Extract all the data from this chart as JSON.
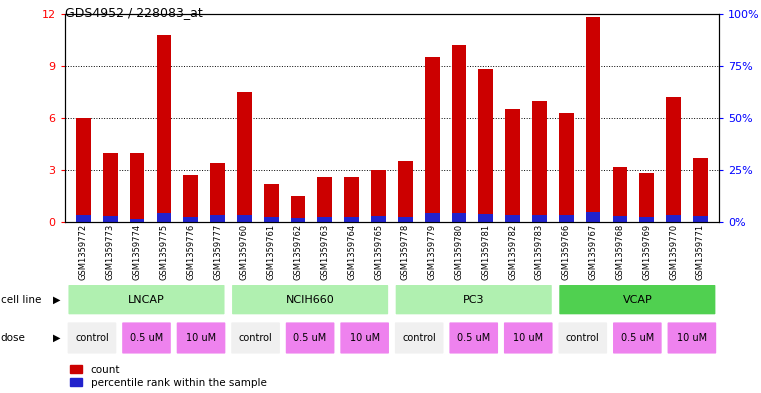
{
  "title": "GDS4952 / 228083_at",
  "samples": [
    "GSM1359772",
    "GSM1359773",
    "GSM1359774",
    "GSM1359775",
    "GSM1359776",
    "GSM1359777",
    "GSM1359760",
    "GSM1359761",
    "GSM1359762",
    "GSM1359763",
    "GSM1359764",
    "GSM1359765",
    "GSM1359778",
    "GSM1359779",
    "GSM1359780",
    "GSM1359781",
    "GSM1359782",
    "GSM1359783",
    "GSM1359766",
    "GSM1359767",
    "GSM1359768",
    "GSM1359769",
    "GSM1359770",
    "GSM1359771"
  ],
  "red_values": [
    6.0,
    4.0,
    4.0,
    10.8,
    2.7,
    3.4,
    7.5,
    2.2,
    1.5,
    2.6,
    2.6,
    3.0,
    3.5,
    9.5,
    10.2,
    8.8,
    6.5,
    7.0,
    6.3,
    11.8,
    3.2,
    2.8,
    7.2,
    3.7
  ],
  "blue_values": [
    0.4,
    0.35,
    0.2,
    0.5,
    0.3,
    0.4,
    0.4,
    0.3,
    0.25,
    0.3,
    0.3,
    0.35,
    0.3,
    0.5,
    0.5,
    0.45,
    0.4,
    0.4,
    0.4,
    0.6,
    0.35,
    0.3,
    0.4,
    0.35
  ],
  "cell_lines": [
    "LNCAP",
    "NCIH660",
    "PC3",
    "VCAP"
  ],
  "cell_line_spans": [
    [
      0,
      6
    ],
    [
      6,
      12
    ],
    [
      12,
      18
    ],
    [
      18,
      24
    ]
  ],
  "cell_line_colors": [
    "#b0f0b0",
    "#b0f0b0",
    "#b0f0b0",
    "#50d050"
  ],
  "dose_labels_per_group": [
    "control",
    "0.5 uM",
    "10 uM"
  ],
  "dose_colors_map": {
    "control": "#f0f0f0",
    "0.5 uM": "#ee82ee",
    "10 uM": "#ee82ee"
  },
  "ylim_left": [
    0,
    12
  ],
  "ylim_right": [
    0,
    100
  ],
  "yticks_left": [
    0,
    3,
    6,
    9,
    12
  ],
  "yticks_right": [
    0,
    25,
    50,
    75,
    100
  ],
  "ytick_labels_right": [
    "0%",
    "25%",
    "50%",
    "75%",
    "100%"
  ],
  "bar_color": "#cc0000",
  "blue_color": "#2222cc",
  "title_fontsize": 9,
  "bar_width": 0.55
}
